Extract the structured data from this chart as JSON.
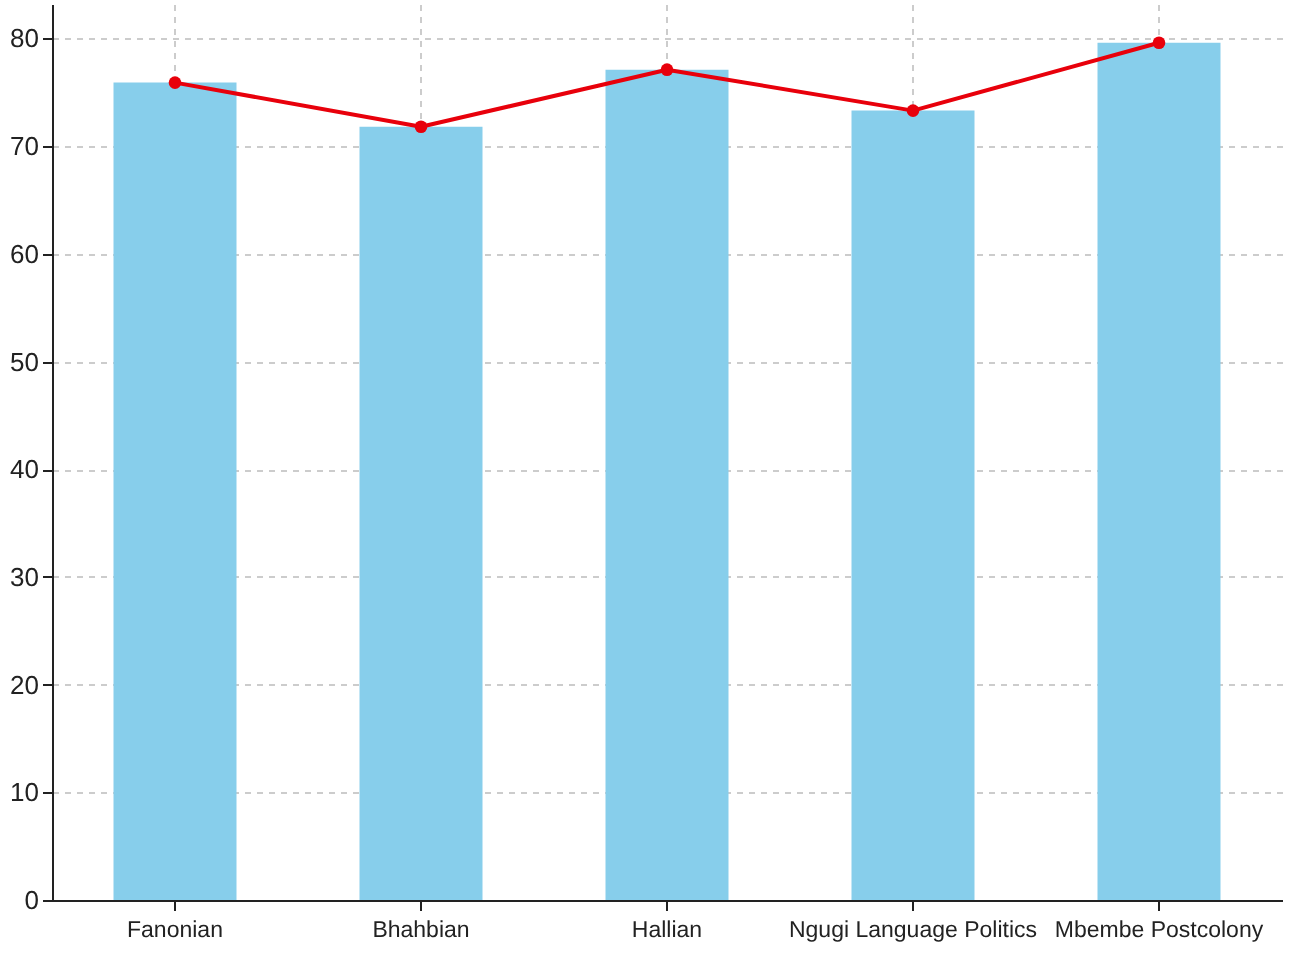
{
  "chart_data": {
    "type": "bar",
    "categories": [
      "Fanonian",
      "Bhahbian",
      "Hallian",
      "Ngugi Language Politics",
      "Mbembe Postcolony"
    ],
    "series": [
      {
        "color": "#87ceeb",
        "values": [
          75.9,
          71.8,
          77.1,
          73.3,
          79.6
        ]
      },
      {
        "type": "line",
        "color": "#e8000b",
        "values": [
          75.9,
          71.8,
          77.1,
          73.3,
          79.6
        ]
      }
    ],
    "ylim": [
      0,
      83.2
    ],
    "yticks": [
      0,
      10,
      20,
      30,
      40,
      50,
      60,
      70,
      80
    ],
    "grid": true,
    "marker": "circle",
    "line_style": "solid"
  }
}
